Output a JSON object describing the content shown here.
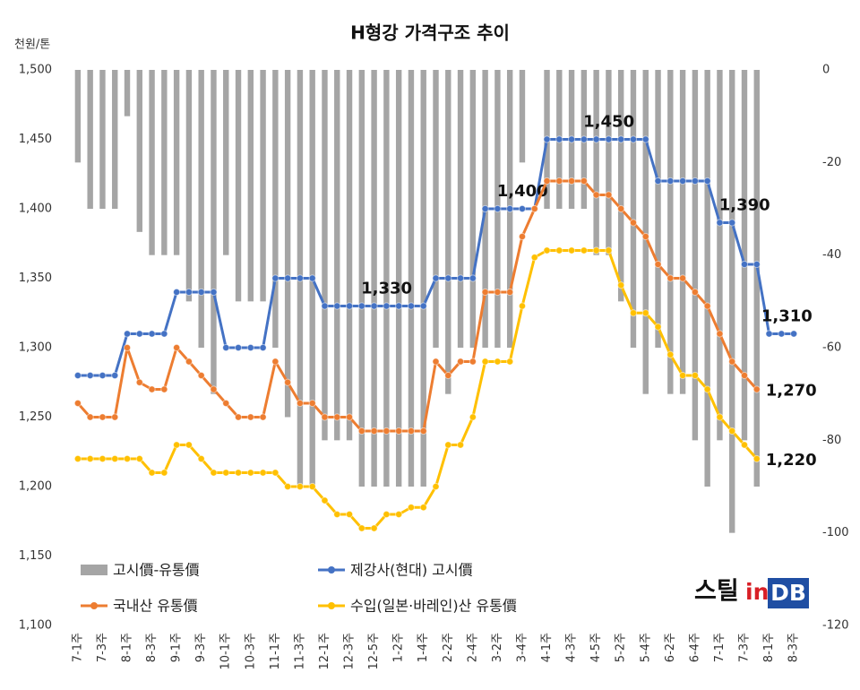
{
  "chart_data": {
    "type": "combo",
    "title": "H형강 가격구조 추이",
    "y_label": "천원/톤",
    "logo": [
      "스틸",
      "in",
      "DB"
    ],
    "categories": [
      "7-1주",
      null,
      "7-3주",
      null,
      "8-1주",
      null,
      "8-3주",
      null,
      "9-1주",
      null,
      "9-3주",
      null,
      "10-1주",
      null,
      "10-3주",
      null,
      "11-1주",
      null,
      "11-3주",
      null,
      "12-1주",
      null,
      "12-3주",
      null,
      "12-5주",
      null,
      "1-2주",
      null,
      "1-4주",
      null,
      "2-2주",
      null,
      "2-4주",
      null,
      "3-2주",
      null,
      "3-4주",
      null,
      "4-1주",
      null,
      "4-3주",
      null,
      "4-5주",
      null,
      "5-2주",
      null,
      "5-4주",
      null,
      "6-2주",
      null,
      "6-4주",
      null,
      "7-1주",
      null,
      "7-3주",
      null,
      "8-1주",
      null,
      "8-3주"
    ],
    "ylim": [
      1100,
      1500
    ],
    "yticks": [
      {
        "value": 1100,
        "label": "1,100"
      },
      {
        "value": 1150,
        "label": "1,150"
      },
      {
        "value": 1200,
        "label": "1,200"
      },
      {
        "value": 1250,
        "label": "1,250"
      },
      {
        "value": 1300,
        "label": "1,300"
      },
      {
        "value": 1350,
        "label": "1,350"
      },
      {
        "value": 1400,
        "label": "1,400"
      },
      {
        "value": 1450,
        "label": "1,450"
      },
      {
        "value": 1500,
        "label": "1,500"
      }
    ],
    "y2lim": [
      -120,
      0
    ],
    "y2ticks": [
      -120,
      -100,
      -80,
      -60,
      -40,
      -20,
      0
    ],
    "grid": false,
    "legend": "bottom-left",
    "series": [
      {
        "name": "고시價-유통價",
        "type": "bar",
        "axis": "y2",
        "color": "#a5a5a5",
        "values": [
          -20,
          -30,
          -30,
          -30,
          -10,
          -35,
          -40,
          -40,
          -40,
          -50,
          -60,
          -70,
          -40,
          -50,
          -50,
          -50,
          -60,
          -75,
          -90,
          -90,
          -80,
          -80,
          -80,
          -90,
          -90,
          -90,
          -90,
          -90,
          -90,
          -60,
          -70,
          -60,
          -60,
          -60,
          -60,
          -60,
          -20,
          0,
          -30,
          -30,
          -30,
          -30,
          -40,
          -40,
          -50,
          -60,
          -70,
          -60,
          -70,
          -70,
          -80,
          -90,
          -80,
          -100,
          -80,
          -90,
          null,
          null,
          null
        ]
      },
      {
        "name": "제강사(현대) 고시價",
        "type": "line",
        "color": "#4472c4",
        "values": [
          1280,
          1280,
          1280,
          1280,
          1310,
          1310,
          1310,
          1310,
          1340,
          1340,
          1340,
          1340,
          1300,
          1300,
          1300,
          1300,
          1350,
          1350,
          1350,
          1350,
          1330,
          1330,
          1330,
          1330,
          1330,
          1330,
          1330,
          1330,
          1330,
          1350,
          1350,
          1350,
          1350,
          1400,
          1400,
          1400,
          1400,
          1400,
          1450,
          1450,
          1450,
          1450,
          1450,
          1450,
          1450,
          1450,
          1450,
          1420,
          1420,
          1420,
          1420,
          1420,
          1390,
          1390,
          1360,
          1360,
          1310,
          1310,
          1310
        ],
        "value_labels": [
          null,
          null,
          null,
          null,
          null,
          null,
          null,
          null,
          null,
          null,
          null,
          null,
          null,
          null,
          null,
          null,
          null,
          null,
          null,
          null,
          null,
          null,
          null,
          null,
          "1,330",
          null,
          null,
          null,
          null,
          null,
          null,
          null,
          null,
          null,
          null,
          "1,400",
          null,
          null,
          null,
          null,
          null,
          null,
          "1,450",
          null,
          null,
          null,
          null,
          null,
          null,
          null,
          null,
          null,
          null,
          "1,390",
          null,
          null,
          null,
          "1,310",
          null
        ]
      },
      {
        "name": "국내산 유통價",
        "type": "line",
        "color": "#ed7d31",
        "values": [
          1260,
          1250,
          1250,
          1250,
          1300,
          1275,
          1270,
          1270,
          1300,
          1290,
          1280,
          1270,
          1260,
          1250,
          1250,
          1250,
          1290,
          1275,
          1260,
          1260,
          1250,
          1250,
          1250,
          1240,
          1240,
          1240,
          1240,
          1240,
          1240,
          1290,
          1280,
          1290,
          1290,
          1340,
          1340,
          1340,
          1380,
          1400,
          1420,
          1420,
          1420,
          1420,
          1410,
          1410,
          1400,
          1390,
          1380,
          1360,
          1350,
          1350,
          1340,
          1330,
          1310,
          1290,
          1280,
          1270,
          null,
          null,
          null
        ],
        "value_labels": [
          null,
          null,
          null,
          null,
          null,
          null,
          null,
          null,
          null,
          null,
          null,
          null,
          null,
          null,
          null,
          null,
          null,
          null,
          null,
          null,
          null,
          null,
          null,
          null,
          null,
          null,
          null,
          null,
          null,
          null,
          null,
          null,
          null,
          null,
          null,
          null,
          null,
          null,
          null,
          null,
          null,
          null,
          null,
          null,
          null,
          null,
          null,
          null,
          null,
          null,
          null,
          null,
          null,
          null,
          null,
          "1,270",
          null,
          null,
          null
        ]
      },
      {
        "name": "수입(일본·바레인)산 유통價",
        "type": "line",
        "color": "#ffc000",
        "values": [
          1220,
          1220,
          1220,
          1220,
          1220,
          1220,
          1210,
          1210,
          1230,
          1230,
          1220,
          1210,
          1210,
          1210,
          1210,
          1210,
          1210,
          1200,
          1200,
          1200,
          1190,
          1180,
          1180,
          1170,
          1170,
          1180,
          1180,
          1185,
          1185,
          1200,
          1230,
          1230,
          1250,
          1290,
          1290,
          1290,
          1330,
          1365,
          1370,
          1370,
          1370,
          1370,
          1370,
          1370,
          1345,
          1325,
          1325,
          1315,
          1295,
          1280,
          1280,
          1270,
          1250,
          1240,
          1230,
          1220,
          null,
          null,
          null
        ],
        "value_labels": [
          null,
          null,
          null,
          null,
          null,
          null,
          null,
          null,
          null,
          null,
          null,
          null,
          null,
          null,
          null,
          null,
          null,
          null,
          null,
          null,
          null,
          null,
          null,
          null,
          null,
          null,
          null,
          null,
          null,
          null,
          null,
          null,
          null,
          null,
          null,
          null,
          null,
          null,
          null,
          null,
          null,
          null,
          null,
          null,
          null,
          null,
          null,
          null,
          null,
          null,
          null,
          null,
          null,
          null,
          null,
          "1,220",
          null,
          null,
          null
        ]
      }
    ]
  }
}
